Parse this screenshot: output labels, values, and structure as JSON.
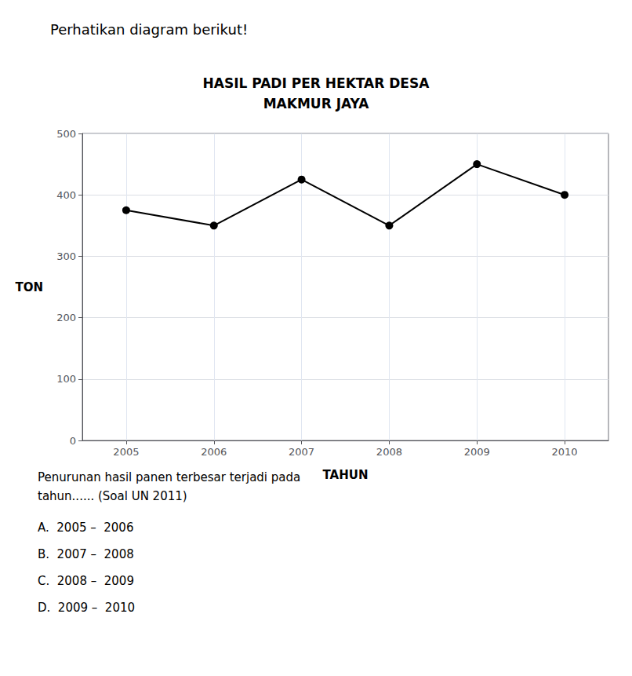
{
  "chart_data": {
    "type": "line",
    "title": "HASIL PADI PER HEKTAR DESA\nMAKMUR JAYA",
    "x_label": "TAHUN",
    "y_label": "TON",
    "x": [
      2005,
      2006,
      2007,
      2008,
      2009,
      2010
    ],
    "values": [
      375,
      350,
      425,
      350,
      450,
      400
    ],
    "xlim": [
      2004.5,
      2010.5
    ],
    "xticks": [
      2005,
      2006,
      2007,
      2008,
      2009,
      2010
    ],
    "ylim": [
      0,
      500
    ],
    "yticks": [
      0,
      100,
      200,
      300,
      400,
      500
    ],
    "color": "#000000",
    "marker": "circle",
    "grid": true,
    "annotations": [
      "Perhatikan diagram berikut!",
      "Penurunan hasil panen terbesar terjadi pada",
      "tahun...... (Soal UN 2011)",
      "A.  2005 –  2006",
      "B.  2007 –  2008",
      "C.  2008 –  2009",
      "D.  2009 –  2010"
    ]
  }
}
